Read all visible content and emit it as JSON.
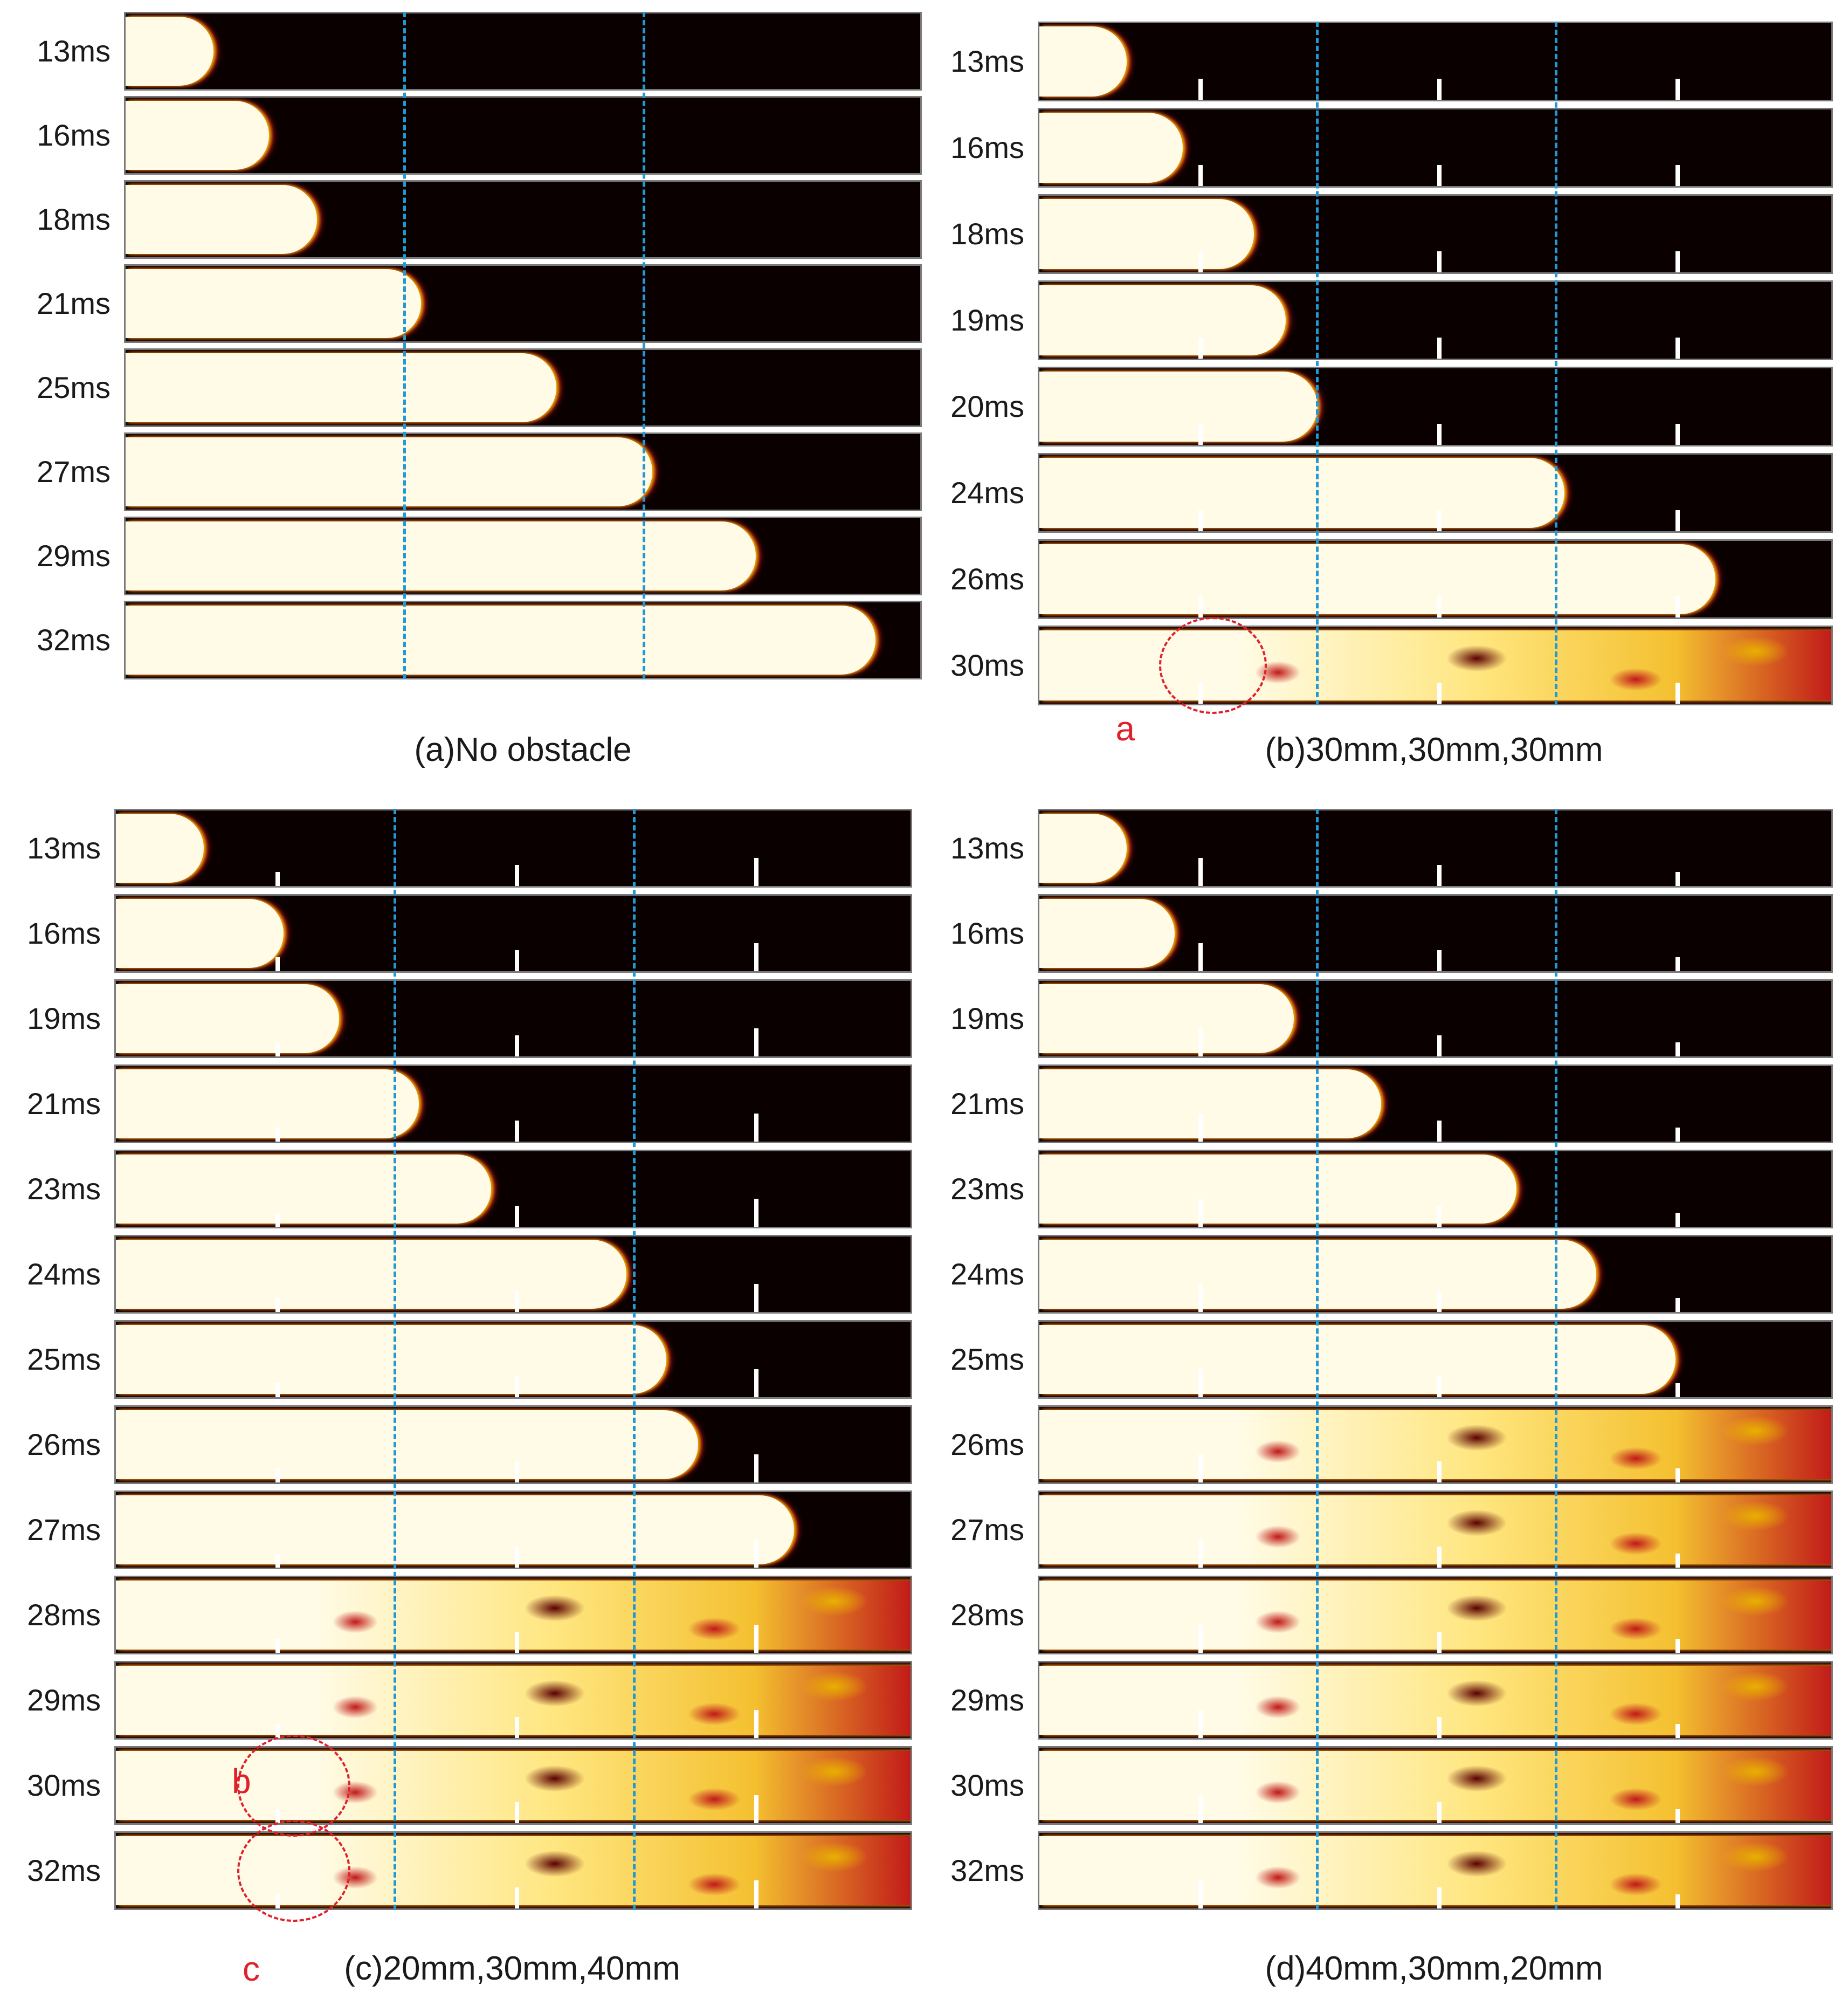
{
  "colors": {
    "background": "#0a0000",
    "unburnt_light": "#fffbe6",
    "flame_edge": "#e8b000",
    "flame_red": "#c01818",
    "dark_red": "#5a0000",
    "guide_line": "#1f9ad6",
    "obstacle": "#ffffff",
    "marker": "#e0202a"
  },
  "panels": [
    {
      "id": "a",
      "caption": "(a)No obstacle",
      "times": [
        "13ms",
        "16ms",
        "18ms",
        "21ms",
        "25ms",
        "27ms",
        "29ms",
        "32ms"
      ],
      "front_fraction": [
        0.11,
        0.18,
        0.24,
        0.37,
        0.54,
        0.66,
        0.79,
        0.94
      ],
      "has_obstacles": false,
      "markers": []
    },
    {
      "id": "b",
      "caption": "(b)30mm,30mm,30mm",
      "times": [
        "13ms",
        "16ms",
        "18ms",
        "19ms",
        "20ms",
        "24ms",
        "26ms",
        "30ms"
      ],
      "front_fraction": [
        0.11,
        0.18,
        0.27,
        0.31,
        0.35,
        0.66,
        0.85,
        1.0
      ],
      "has_obstacles": true,
      "obstacle_heights_mm": [
        30,
        30,
        30
      ],
      "markers": [
        {
          "label": "a"
        }
      ]
    },
    {
      "id": "c",
      "caption": "(c)20mm,30mm,40mm",
      "times": [
        "13ms",
        "16ms",
        "19ms",
        "21ms",
        "23ms",
        "24ms",
        "25ms",
        "26ms",
        "27ms",
        "28ms",
        "29ms",
        "30ms",
        "32ms"
      ],
      "front_fraction": [
        0.11,
        0.21,
        0.28,
        0.38,
        0.47,
        0.64,
        0.69,
        0.73,
        0.85,
        1.0,
        1.0,
        1.0,
        1.0
      ],
      "has_obstacles": true,
      "obstacle_heights_mm": [
        20,
        30,
        40
      ],
      "markers": [
        {
          "label": "b"
        },
        {
          "label": "c"
        }
      ]
    },
    {
      "id": "d",
      "caption": "(d)40mm,30mm,20mm",
      "times": [
        "13ms",
        "16ms",
        "19ms",
        "21ms",
        "23ms",
        "24ms",
        "25ms",
        "26ms",
        "27ms",
        "28ms",
        "29ms",
        "30ms",
        "32ms"
      ],
      "front_fraction": [
        0.11,
        0.17,
        0.32,
        0.43,
        0.6,
        0.7,
        0.8,
        1.0,
        1.0,
        1.0,
        1.0,
        1.0,
        1.0
      ],
      "has_obstacles": true,
      "obstacle_heights_mm": [
        40,
        30,
        20
      ],
      "markers": []
    }
  ]
}
